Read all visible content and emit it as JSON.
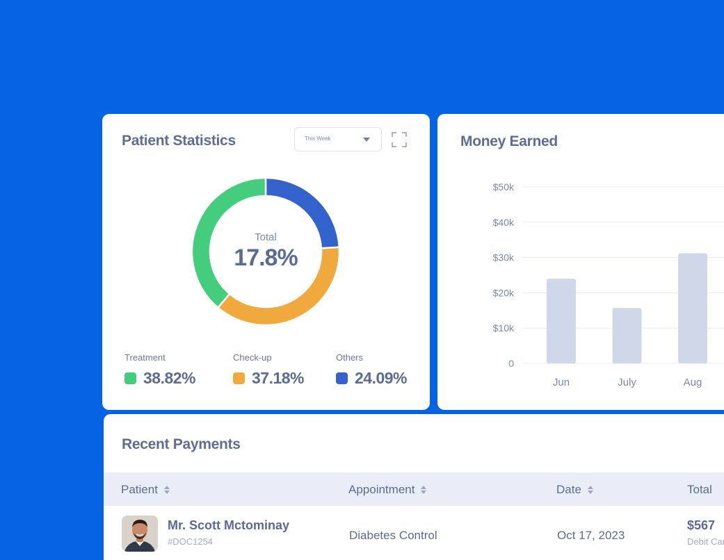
{
  "patient_statistics": {
    "title": "Patient Statistics",
    "period_select": {
      "selected": "This Week"
    },
    "total_label": "Total",
    "total_value": "17.8%",
    "segments": [
      {
        "label": "Treatment",
        "display": "38.82%",
        "percent": 38.82,
        "color": "#43cd7c"
      },
      {
        "label": "Check-up",
        "display": "37.18%",
        "percent": 37.18,
        "color": "#f0a93c"
      },
      {
        "label": "Others",
        "display": "24.09%",
        "percent": 24.09,
        "color": "#3362cc"
      }
    ]
  },
  "money_earned": {
    "title": "Money Earned",
    "bar_color": "#cfd7e8"
  },
  "chart_data": {
    "type": "bar",
    "categories": [
      "Jun",
      "July",
      "Aug"
    ],
    "values": [
      24000,
      15700,
      31200
    ],
    "ylim": [
      0,
      50000
    ],
    "yticks": [
      0,
      10000,
      20000,
      30000,
      40000,
      50000
    ],
    "ytick_labels": [
      "0",
      "$10k",
      "$20k",
      "$30k",
      "$40k",
      "$50k"
    ],
    "grid": true
  },
  "recent_payments": {
    "title": "Recent Payments",
    "columns": [
      "Patient",
      "Appointment",
      "Date",
      "Total"
    ],
    "rows": [
      {
        "patient_name": "Mr. Scott Mctominay",
        "patient_id": "#DOC1254",
        "appointment": "Diabetes Control",
        "date": "Oct 17, 2023",
        "amount": "$567",
        "method": "Debit Card"
      }
    ]
  },
  "colors": {
    "background": "#0564e3",
    "card": "#ffffff",
    "table_header": "#e9edf7"
  }
}
